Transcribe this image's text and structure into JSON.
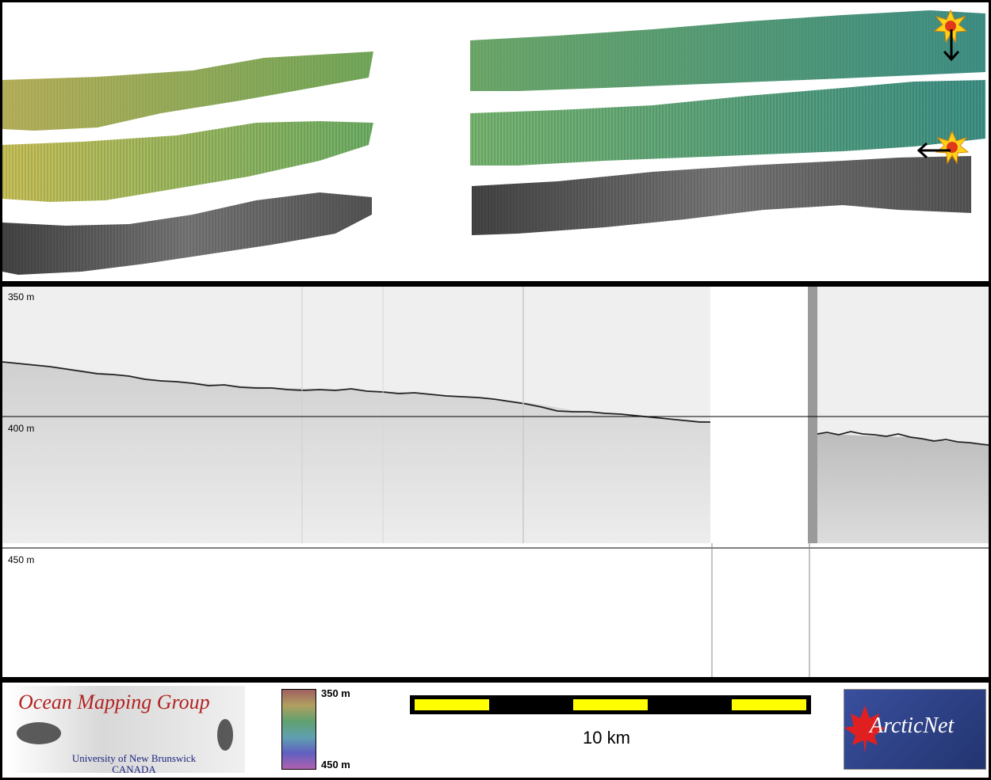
{
  "profile": {
    "depth_labels": [
      "350 m",
      "400 m",
      "450 m"
    ]
  },
  "colorbar": {
    "top_label": "350 m",
    "bottom_label": "450 m"
  },
  "scalebar": {
    "label": "10 km"
  },
  "logos": {
    "omg_title": "Ocean Mapping Group",
    "omg_university": "University of New Brunswick",
    "omg_country": "CANADA",
    "arcticnet": "ArcticNet"
  },
  "colors": {
    "frame": "#000000",
    "swath_bathy_left": "#8fa84a",
    "swath_bathy_right": "#4f9f7f",
    "scale_yellow": "#ffff00",
    "omg_red": "#b22222",
    "arcticnet_blue": "#2b3f8a"
  },
  "icons": [
    "sun-marker-icon",
    "arrow-down-icon",
    "arrow-left-icon",
    "maple-leaf-icon"
  ]
}
